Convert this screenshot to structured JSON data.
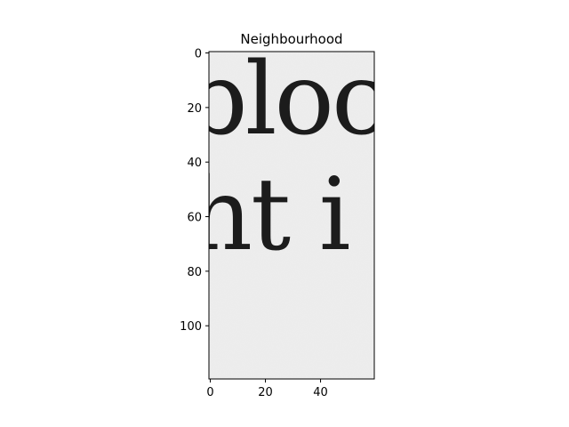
{
  "chart_data": {
    "type": "image",
    "title": "Neighbourhood",
    "image_size": {
      "width": 60,
      "height": 120
    },
    "xlim": [
      -0.5,
      59.5
    ],
    "ylim": [
      119.5,
      -0.5
    ],
    "x_ticks": [
      0,
      20,
      40
    ],
    "y_ticks": [
      0,
      20,
      40,
      60,
      80,
      100
    ],
    "colormap": "gray",
    "image_text_lines": [
      "bloc",
      "ht i"
    ],
    "colors": {
      "paper": "#eeeeee",
      "ink": "#1c1c1c",
      "axis": "#000000"
    }
  }
}
